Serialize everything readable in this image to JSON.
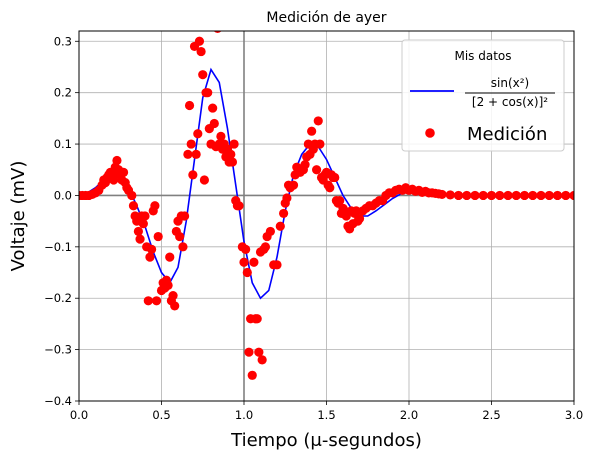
{
  "chart_data": {
    "type": "scatter",
    "title": "Medición de ayer",
    "xlabel": "Tiempo (μ-segundos)",
    "ylabel": "Voltaje (mV)",
    "xlim": [
      0.0,
      3.0
    ],
    "ylim": [
      -0.4,
      0.32
    ],
    "xticks": [
      0.0,
      0.5,
      1.0,
      1.5,
      2.0,
      2.5,
      3.0
    ],
    "xtick_labels": [
      "0.0",
      "0.5",
      "1.0",
      "1.5",
      "2.0",
      "2.5",
      "3.0"
    ],
    "yticks": [
      -0.4,
      -0.3,
      -0.2,
      -0.1,
      0.0,
      0.1,
      0.2,
      0.3
    ],
    "ytick_labels": [
      "−0.4",
      "−0.3",
      "−0.2",
      "−0.1",
      "0.0",
      "0.1",
      "0.2",
      "0.3"
    ],
    "grid": true,
    "reference_lines": {
      "x": 1.0,
      "y": 0.0
    },
    "legend": {
      "title": "Mis datos",
      "placement": "top-right",
      "entries": [
        {
          "label": "sin(x²) / [2 + cos(x)]²",
          "numerator": "sin(x²)",
          "denominator": "[2 + cos(x)]²",
          "marker": "line",
          "color": "#0000ff"
        },
        {
          "label": "Medición",
          "marker": "circle",
          "color": "#ff0000"
        }
      ]
    },
    "series": [
      {
        "name": "sin(x²) / [2 + cos(x)]²",
        "kind": "line",
        "color": "#0000ff",
        "x": [
          0.0,
          0.05,
          0.1,
          0.15,
          0.2,
          0.25,
          0.3,
          0.35,
          0.4,
          0.45,
          0.5,
          0.55,
          0.6,
          0.65,
          0.7,
          0.75,
          0.8,
          0.85,
          0.9,
          0.95,
          1.0,
          1.05,
          1.1,
          1.15,
          1.2,
          1.25,
          1.3,
          1.35,
          1.4,
          1.45,
          1.5,
          1.55,
          1.6,
          1.65,
          1.7,
          1.75,
          1.8,
          1.85,
          1.9,
          1.95,
          2.0,
          2.05,
          2.1,
          2.15,
          2.2,
          2.3,
          2.4,
          2.5,
          2.6,
          2.7,
          2.8,
          2.9,
          3.0
        ],
        "y": [
          0.0,
          0.005,
          0.015,
          0.03,
          0.04,
          0.035,
          0.015,
          -0.02,
          -0.06,
          -0.11,
          -0.15,
          -0.17,
          -0.14,
          -0.05,
          0.07,
          0.19,
          0.245,
          0.22,
          0.13,
          0.02,
          -0.09,
          -0.17,
          -0.2,
          -0.185,
          -0.12,
          -0.03,
          0.04,
          0.08,
          0.1,
          0.095,
          0.07,
          0.035,
          0.0,
          -0.025,
          -0.04,
          -0.04,
          -0.03,
          -0.018,
          -0.006,
          0.003,
          0.008,
          0.008,
          0.006,
          0.004,
          0.003,
          0.002,
          0.001,
          0.001,
          0.0,
          0.0,
          0.0,
          0.0,
          0.0
        ]
      },
      {
        "name": "Medición",
        "kind": "scatter",
        "color": "#ff0000",
        "points": [
          [
            0.0,
            0.0
          ],
          [
            0.02,
            0.0
          ],
          [
            0.04,
            0.0
          ],
          [
            0.06,
            0.0
          ],
          [
            0.08,
            0.002
          ],
          [
            0.1,
            0.005
          ],
          [
            0.12,
            0.01
          ],
          [
            0.14,
            0.02
          ],
          [
            0.15,
            0.03
          ],
          [
            0.16,
            0.025
          ],
          [
            0.17,
            0.035
          ],
          [
            0.18,
            0.04
          ],
          [
            0.19,
            0.045
          ],
          [
            0.2,
            0.04
          ],
          [
            0.21,
            0.03
          ],
          [
            0.22,
            0.055
          ],
          [
            0.23,
            0.068
          ],
          [
            0.24,
            0.05
          ],
          [
            0.25,
            0.04
          ],
          [
            0.26,
            0.03
          ],
          [
            0.27,
            0.045
          ],
          [
            0.28,
            0.025
          ],
          [
            0.29,
            0.015
          ],
          [
            0.3,
            0.01
          ],
          [
            0.32,
            0.0
          ],
          [
            0.33,
            -0.02
          ],
          [
            0.34,
            -0.04
          ],
          [
            0.35,
            -0.05
          ],
          [
            0.36,
            -0.07
          ],
          [
            0.37,
            -0.085
          ],
          [
            0.38,
            -0.04
          ],
          [
            0.39,
            -0.055
          ],
          [
            0.4,
            -0.04
          ],
          [
            0.41,
            -0.1
          ],
          [
            0.42,
            -0.205
          ],
          [
            0.43,
            -0.12
          ],
          [
            0.44,
            -0.105
          ],
          [
            0.45,
            -0.03
          ],
          [
            0.46,
            -0.02
          ],
          [
            0.47,
            -0.205
          ],
          [
            0.48,
            -0.08
          ],
          [
            0.5,
            -0.185
          ],
          [
            0.51,
            -0.17
          ],
          [
            0.52,
            -0.18
          ],
          [
            0.53,
            -0.165
          ],
          [
            0.54,
            -0.175
          ],
          [
            0.55,
            -0.12
          ],
          [
            0.56,
            -0.205
          ],
          [
            0.57,
            -0.195
          ],
          [
            0.58,
            -0.215
          ],
          [
            0.59,
            -0.07
          ],
          [
            0.6,
            -0.05
          ],
          [
            0.61,
            -0.08
          ],
          [
            0.62,
            -0.04
          ],
          [
            0.63,
            -0.1
          ],
          [
            0.64,
            -0.04
          ],
          [
            0.66,
            0.08
          ],
          [
            0.67,
            0.175
          ],
          [
            0.68,
            0.1
          ],
          [
            0.69,
            0.04
          ],
          [
            0.7,
            0.29
          ],
          [
            0.71,
            0.08
          ],
          [
            0.72,
            0.12
          ],
          [
            0.73,
            0.3
          ],
          [
            0.74,
            0.28
          ],
          [
            0.75,
            0.235
          ],
          [
            0.76,
            0.03
          ],
          [
            0.77,
            0.2
          ],
          [
            0.78,
            0.2
          ],
          [
            0.79,
            0.13
          ],
          [
            0.8,
            0.1
          ],
          [
            0.81,
            0.17
          ],
          [
            0.82,
            0.14
          ],
          [
            0.83,
            0.095
          ],
          [
            0.84,
            0.325
          ],
          [
            0.85,
            0.1
          ],
          [
            0.86,
            0.115
          ],
          [
            0.87,
            0.09
          ],
          [
            0.88,
            0.1
          ],
          [
            0.89,
            0.075
          ],
          [
            0.9,
            0.09
          ],
          [
            0.91,
            0.065
          ],
          [
            0.92,
            0.08
          ],
          [
            0.93,
            0.065
          ],
          [
            0.94,
            0.1
          ],
          [
            0.95,
            -0.01
          ],
          [
            0.96,
            -0.02
          ],
          [
            0.97,
            -0.02
          ],
          [
            0.99,
            -0.1
          ],
          [
            1.0,
            -0.13
          ],
          [
            1.01,
            -0.105
          ],
          [
            1.02,
            -0.15
          ],
          [
            1.03,
            -0.305
          ],
          [
            1.04,
            -0.24
          ],
          [
            1.05,
            -0.35
          ],
          [
            1.06,
            -0.13
          ],
          [
            1.07,
            -0.24
          ],
          [
            1.08,
            -0.24
          ],
          [
            1.09,
            -0.305
          ],
          [
            1.1,
            -0.11
          ],
          [
            1.11,
            -0.32
          ],
          [
            1.12,
            -0.105
          ],
          [
            1.13,
            -0.1
          ],
          [
            1.14,
            -0.08
          ],
          [
            1.16,
            -0.07
          ],
          [
            1.18,
            -0.135
          ],
          [
            1.2,
            -0.135
          ],
          [
            1.22,
            -0.06
          ],
          [
            1.24,
            -0.035
          ],
          [
            1.25,
            -0.015
          ],
          [
            1.26,
            -0.005
          ],
          [
            1.27,
            0.02
          ],
          [
            1.28,
            0.015
          ],
          [
            1.3,
            0.02
          ],
          [
            1.31,
            0.04
          ],
          [
            1.32,
            0.055
          ],
          [
            1.33,
            0.05
          ],
          [
            1.34,
            0.045
          ],
          [
            1.35,
            0.05
          ],
          [
            1.36,
            0.05
          ],
          [
            1.37,
            0.06
          ],
          [
            1.38,
            0.075
          ],
          [
            1.39,
            0.1
          ],
          [
            1.4,
            0.08
          ],
          [
            1.41,
            0.125
          ],
          [
            1.42,
            0.09
          ],
          [
            1.43,
            0.1
          ],
          [
            1.44,
            0.05
          ],
          [
            1.45,
            0.145
          ],
          [
            1.46,
            0.1
          ],
          [
            1.47,
            0.035
          ],
          [
            1.48,
            0.03
          ],
          [
            1.49,
            0.04
          ],
          [
            1.5,
            0.045
          ],
          [
            1.51,
            0.02
          ],
          [
            1.52,
            0.015
          ],
          [
            1.53,
            0.04
          ],
          [
            1.54,
            0.035
          ],
          [
            1.55,
            0.035
          ],
          [
            1.56,
            -0.01
          ],
          [
            1.57,
            -0.015
          ],
          [
            1.58,
            -0.01
          ],
          [
            1.59,
            -0.035
          ],
          [
            1.6,
            -0.025
          ],
          [
            1.61,
            -0.03
          ],
          [
            1.62,
            -0.04
          ],
          [
            1.63,
            -0.06
          ],
          [
            1.64,
            -0.065
          ],
          [
            1.65,
            -0.03
          ],
          [
            1.66,
            -0.055
          ],
          [
            1.67,
            -0.035
          ],
          [
            1.68,
            -0.03
          ],
          [
            1.69,
            -0.05
          ],
          [
            1.7,
            -0.045
          ],
          [
            1.72,
            -0.03
          ],
          [
            1.74,
            -0.025
          ],
          [
            1.76,
            -0.02
          ],
          [
            1.78,
            -0.02
          ],
          [
            1.8,
            -0.015
          ],
          [
            1.82,
            -0.01
          ],
          [
            1.84,
            -0.01
          ],
          [
            1.86,
            0.0
          ],
          [
            1.88,
            0.005
          ],
          [
            1.9,
            0.005
          ],
          [
            1.92,
            0.01
          ],
          [
            1.94,
            0.012
          ],
          [
            1.96,
            0.01
          ],
          [
            1.98,
            0.015
          ],
          [
            2.0,
            0.01
          ],
          [
            2.02,
            0.012
          ],
          [
            2.04,
            0.008
          ],
          [
            2.06,
            0.01
          ],
          [
            2.08,
            0.006
          ],
          [
            2.1,
            0.008
          ],
          [
            2.12,
            0.005
          ],
          [
            2.14,
            0.005
          ],
          [
            2.16,
            0.004
          ],
          [
            2.18,
            0.003
          ],
          [
            2.2,
            0.002
          ],
          [
            2.25,
            0.001
          ],
          [
            2.3,
            0.0
          ],
          [
            2.35,
            0.0
          ],
          [
            2.4,
            0.0
          ],
          [
            2.45,
            0.0
          ],
          [
            2.5,
            0.0
          ],
          [
            2.55,
            0.0
          ],
          [
            2.6,
            0.0
          ],
          [
            2.65,
            0.0
          ],
          [
            2.7,
            0.0
          ],
          [
            2.75,
            0.0
          ],
          [
            2.8,
            0.0
          ],
          [
            2.85,
            0.0
          ],
          [
            2.9,
            0.0
          ],
          [
            2.95,
            0.0
          ],
          [
            3.0,
            0.0
          ]
        ]
      }
    ]
  }
}
